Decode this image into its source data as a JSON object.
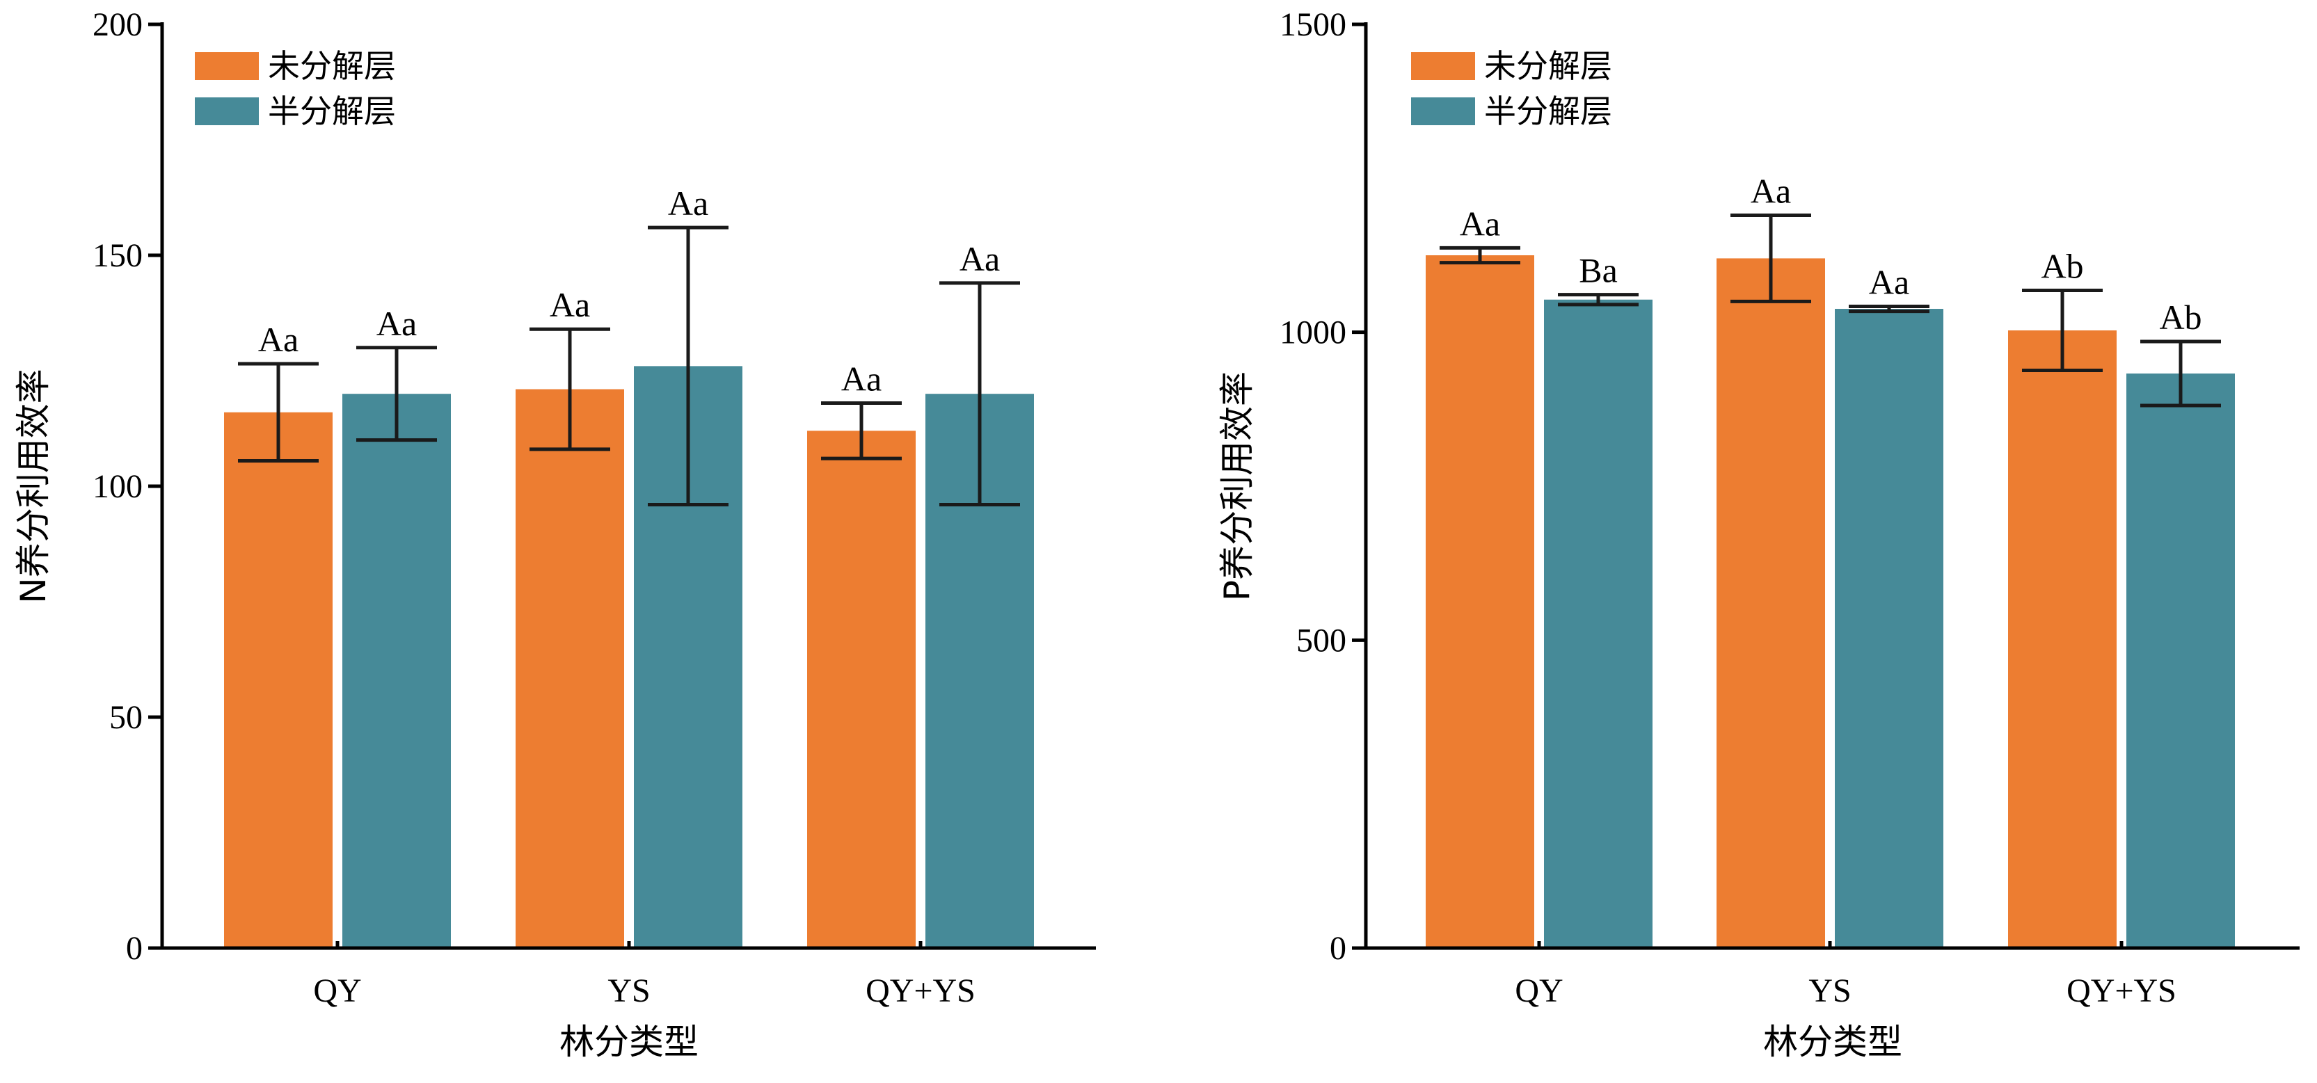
{
  "chart_data": [
    {
      "type": "bar",
      "categories": [
        "QY",
        "YS",
        "QY+YS"
      ],
      "xlabel": "林分类型",
      "ylabel": "N养分利用效率",
      "ylim": [
        0,
        200
      ],
      "yticks": [
        0,
        50,
        100,
        150,
        200
      ],
      "legend_position": "top-left",
      "series": [
        {
          "name": "未分解层",
          "color": "#ED7D31",
          "values": [
            116,
            121,
            112
          ],
          "errors": [
            10.5,
            13,
            6
          ],
          "labels": [
            "Aa",
            "Aa",
            "Aa"
          ]
        },
        {
          "name": "半分解层",
          "color": "#468A98",
          "values": [
            120,
            126,
            120
          ],
          "errors": [
            10,
            30,
            24
          ],
          "labels": [
            "Aa",
            "Aa",
            "Aa"
          ]
        }
      ]
    },
    {
      "type": "bar",
      "categories": [
        "QY",
        "YS",
        "QY+YS"
      ],
      "xlabel": "林分类型",
      "ylabel": "P养分利用效率",
      "ylim": [
        0,
        1500
      ],
      "yticks": [
        0,
        500,
        1000,
        1500
      ],
      "legend_position": "top-left",
      "series": [
        {
          "name": "未分解层",
          "color": "#ED7D31",
          "values": [
            1125,
            1120,
            1003
          ],
          "errors": [
            12,
            70,
            65
          ],
          "labels": [
            "Aa",
            "Aa",
            "Ab"
          ]
        },
        {
          "name": "半分解层",
          "color": "#468A98",
          "values": [
            1053,
            1038,
            933
          ],
          "errors": [
            8,
            4,
            52
          ],
          "labels": [
            "Ba",
            "Aa",
            "Ab"
          ]
        }
      ]
    }
  ]
}
